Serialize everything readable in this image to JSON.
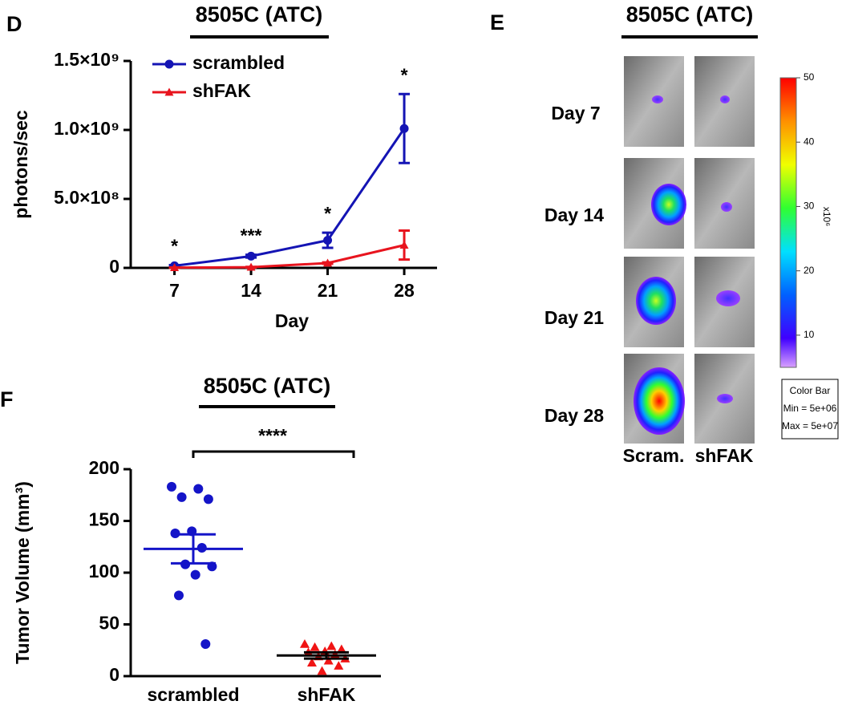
{
  "chart_data": [
    {
      "type": "line",
      "panel": "D",
      "title": "8505C (ATC)",
      "x_label": "Day",
      "y_label": "photons/sec",
      "x": [
        7,
        14,
        21,
        28
      ],
      "xlim": [
        3,
        31
      ],
      "xticks": [
        7,
        14,
        21,
        28
      ],
      "ylim": [
        0,
        1500000000
      ],
      "yticks": [
        0,
        {
          "value": 500000000,
          "label": "5.0×10⁸"
        },
        {
          "value": 1000000000,
          "label": "1.0×10⁹"
        },
        {
          "value": 1500000000,
          "label": "1.5×10⁹"
        }
      ],
      "series": [
        {
          "name": "scrambled",
          "color": "#1414b4",
          "marker": "circle",
          "values": [
            15000000,
            85000000,
            200000000,
            1010000000
          ],
          "errors": [
            5000000,
            10000000,
            55000000,
            250000000
          ]
        },
        {
          "name": "shFAK",
          "color": "#e8141e",
          "marker": "triangle",
          "values": [
            2000000,
            5000000,
            35000000,
            165000000
          ],
          "errors": [
            1000000,
            2000000,
            5000000,
            105000000
          ]
        }
      ],
      "annotations": [
        {
          "x": 7,
          "text": "*"
        },
        {
          "x": 14,
          "text": "***"
        },
        {
          "x": 21,
          "text": "*"
        },
        {
          "x": 28,
          "text": "*"
        }
      ],
      "legend": "upper left"
    },
    {
      "type": "dot",
      "panel": "F",
      "title": "8505C (ATC)",
      "y_label": "Tumor Volume (mm³)",
      "categories": [
        "scrambled",
        "shFAK"
      ],
      "ylim": [
        0,
        200
      ],
      "yticks": [
        0,
        50,
        100,
        150,
        200
      ],
      "groups": [
        {
          "color": "#1414c8",
          "marker": "circle",
          "values": [
            183,
            181,
            173,
            171,
            140,
            138,
            124,
            108,
            106,
            98,
            78,
            31
          ],
          "mean": 123,
          "sem": 14
        },
        {
          "color": "#f01414",
          "marker": "triangle",
          "values": [
            31,
            29,
            28,
            26,
            24,
            23,
            21,
            19,
            17,
            15,
            13,
            10,
            5
          ],
          "mean": 20,
          "sem": 3
        }
      ],
      "significance": "****"
    }
  ],
  "panel_e": {
    "panel": "E",
    "title": "8505C (ATC)",
    "rows": [
      "Day 7",
      "Day 14",
      "Day 21",
      "Day 28"
    ],
    "columns": [
      "Scram.",
      "shFAK"
    ],
    "colorbar": {
      "lim": [
        5,
        50
      ],
      "ticks": [
        10,
        20,
        30,
        40,
        50
      ],
      "unit": "x10⁶",
      "legend": [
        "Color Bar",
        "Min = 5e+06",
        "Max = 5e+07"
      ]
    }
  }
}
